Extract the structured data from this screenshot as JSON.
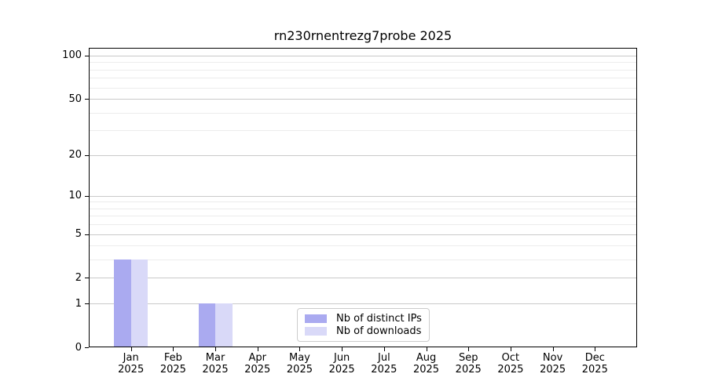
{
  "figure": {
    "title": "rn230rnentrezg7probe 2025"
  },
  "chart_data": {
    "type": "bar",
    "title": "rn230rnentrezg7probe 2025",
    "categories": [
      "Jan",
      "Feb",
      "Mar",
      "Apr",
      "May",
      "Jun",
      "Jul",
      "Aug",
      "Sep",
      "Oct",
      "Nov",
      "Dec"
    ],
    "category_year": "2025",
    "series": [
      {
        "name": "Nb of distinct IPs",
        "color": "#aaaaf0",
        "values": [
          3,
          0,
          1,
          0,
          0,
          0,
          0,
          0,
          0,
          0,
          0,
          0
        ]
      },
      {
        "name": "Nb of downloads",
        "color": "#d9d9f8",
        "values": [
          3,
          0,
          1,
          0,
          0,
          0,
          0,
          0,
          0,
          0,
          0,
          0
        ]
      }
    ],
    "yscale": "log1p",
    "ylim": [
      0,
      110
    ],
    "yticks_major": [
      0,
      1,
      2,
      5,
      10,
      20,
      50,
      100
    ],
    "yticks_minor": [
      3,
      4,
      6,
      7,
      8,
      9,
      30,
      40,
      60,
      70,
      80,
      90
    ],
    "grid": true,
    "legend_position": "lower center",
    "colors": {
      "grid_major": "#c9c9c9",
      "grid_minor": "#ececec",
      "spine": "#000000",
      "text": "#000000",
      "background": "#ffffff"
    }
  }
}
